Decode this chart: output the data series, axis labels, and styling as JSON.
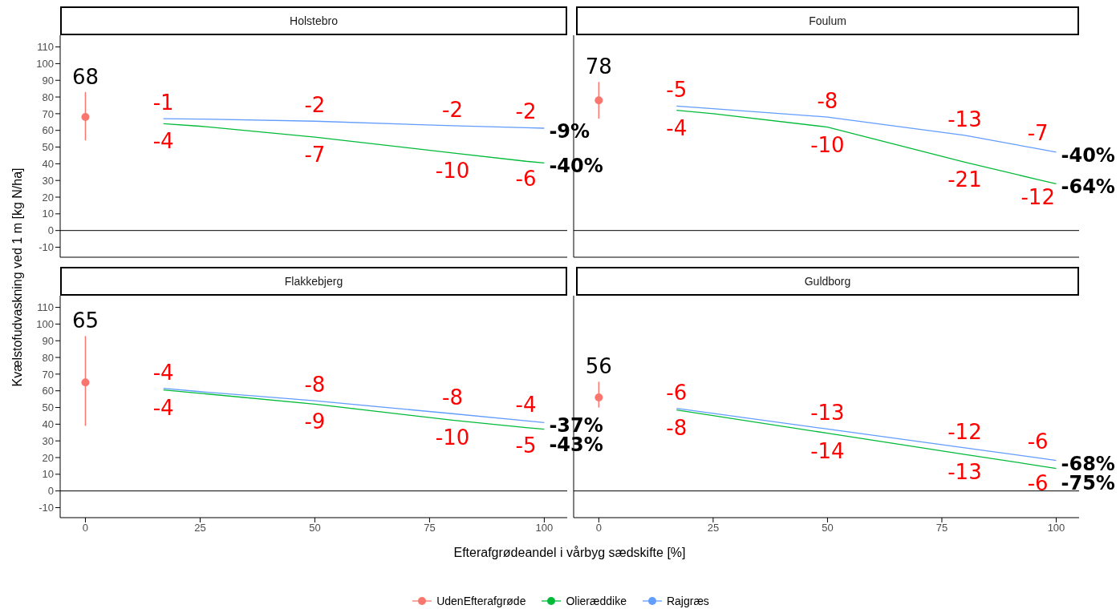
{
  "chart_data": [
    {
      "type": "line",
      "title": "Holstebro",
      "ylabel": "Kvælstofudvaskning ved 1 m [kg N/ha]",
      "xlim": [
        -5.5,
        105
      ],
      "xticks": [
        0,
        25,
        50,
        75,
        100
      ],
      "ylim": [
        -16,
        117
      ],
      "yticks": [
        -10,
        0,
        10,
        20,
        30,
        40,
        50,
        60,
        70,
        80,
        90,
        100,
        110
      ],
      "tick_labels": "y",
      "legend": "bottom",
      "ref_lines": [
        {
          "axis": "y",
          "value": 0,
          "color": "#000000"
        }
      ],
      "series": [
        {
          "name": "UdenEfterafgrøde",
          "type": "scatter",
          "marker": "circle",
          "color": "#f8766d",
          "x": [
            0
          ],
          "values": [
            68
          ],
          "errors": [
            [
              54,
              83
            ]
          ],
          "value_labels": [
            "68"
          ]
        },
        {
          "name": "Olieræddike",
          "color": "#00ba38",
          "x": [
            17,
            25,
            50,
            80,
            96,
            100
          ],
          "values": [
            64,
            62.5,
            56,
            46.5,
            41.5,
            40.5
          ]
        },
        {
          "name": "Rajgræs",
          "color": "#619cff",
          "x": [
            17,
            25,
            50,
            80,
            96,
            100
          ],
          "values": [
            67,
            66.8,
            65.5,
            62.8,
            61.6,
            61.3
          ]
        }
      ],
      "annotations": [
        {
          "text": "-1",
          "x": 17,
          "y": 67
        },
        {
          "text": "-4",
          "x": 17,
          "y": 64
        },
        {
          "text": "-2",
          "x": 50,
          "y": 65.5
        },
        {
          "text": "-7",
          "x": 50,
          "y": 56
        },
        {
          "text": "-2",
          "x": 80,
          "y": 62.8
        },
        {
          "text": "-10",
          "x": 80,
          "y": 46.5
        },
        {
          "text": "-2",
          "x": 96,
          "y": 61.6
        },
        {
          "text": "-6",
          "x": 96,
          "y": 41.5
        },
        {
          "text": "-9%",
          "x": 100,
          "y": 61.3
        },
        {
          "text": "-40%",
          "x": 100,
          "y": 40.5
        }
      ]
    },
    {
      "type": "line",
      "title": "Foulum",
      "xlim": [
        -5.5,
        105
      ],
      "xticks": [
        0,
        25,
        50,
        75,
        100
      ],
      "ylim": [
        -16,
        117
      ],
      "yticks": [
        -10,
        0,
        10,
        20,
        30,
        40,
        50,
        60,
        70,
        80,
        90,
        100,
        110
      ],
      "tick_labels": false,
      "ref_lines": [
        {
          "axis": "y",
          "value": 0,
          "color": "#000000"
        }
      ],
      "series": [
        {
          "type": "scatter",
          "marker": "circle",
          "color": "#f8766d",
          "x": [
            0
          ],
          "values": [
            78
          ],
          "errors": [
            [
              67,
              89
            ]
          ],
          "value_labels": [
            "78"
          ]
        },
        {
          "color": "#00ba38",
          "x": [
            17,
            25,
            50,
            80,
            96,
            100
          ],
          "values": [
            72,
            70,
            62,
            41,
            30.5,
            28
          ]
        },
        {
          "color": "#619cff",
          "x": [
            17,
            25,
            50,
            80,
            96,
            100
          ],
          "values": [
            74.6,
            73,
            68,
            57,
            49,
            47
          ]
        }
      ],
      "annotations": [
        {
          "text": "-5",
          "x": 17,
          "y": 74.6
        },
        {
          "text": "-4",
          "x": 17,
          "y": 72
        },
        {
          "text": "-8",
          "x": 50,
          "y": 68
        },
        {
          "text": "-10",
          "x": 50,
          "y": 62
        },
        {
          "text": "-13",
          "x": 80,
          "y": 57
        },
        {
          "text": "-21",
          "x": 80,
          "y": 41
        },
        {
          "text": "-7",
          "x": 96,
          "y": 49
        },
        {
          "text": "-12",
          "x": 96,
          "y": 30.5
        },
        {
          "text": "-40%",
          "x": 100,
          "y": 47
        },
        {
          "text": "-64%",
          "x": 100,
          "y": 28
        }
      ]
    },
    {
      "type": "line",
      "title": "Flakkebjerg",
      "xlabel": "Efterafgrødeandel i vårbyg sædskifte [%]",
      "xlim": [
        -5.5,
        105
      ],
      "xticks": [
        0,
        25,
        50,
        75,
        100
      ],
      "ylim": [
        -16,
        117
      ],
      "yticks": [
        -10,
        0,
        10,
        20,
        30,
        40,
        50,
        60,
        70,
        80,
        90,
        100,
        110
      ],
      "ref_lines": [
        {
          "axis": "y",
          "value": 0,
          "color": "#000000"
        }
      ],
      "series": [
        {
          "type": "scatter",
          "marker": "circle",
          "color": "#f8766d",
          "x": [
            0
          ],
          "values": [
            65
          ],
          "errors": [
            [
              39,
              92.8
            ]
          ],
          "value_labels": [
            "65"
          ]
        },
        {
          "color": "#00ba38",
          "x": [
            17,
            25,
            50,
            80,
            96,
            100
          ],
          "values": [
            60.5,
            58.5,
            52,
            42.4,
            38,
            37
          ]
        },
        {
          "color": "#619cff",
          "x": [
            17,
            25,
            50,
            80,
            96,
            100
          ],
          "values": [
            61.5,
            59.5,
            54,
            46.3,
            42,
            41
          ]
        }
      ],
      "annotations": [
        {
          "text": "-4",
          "x": 17,
          "y": 61.5
        },
        {
          "text": "-4",
          "x": 17,
          "y": 60.5
        },
        {
          "text": "-8",
          "x": 50,
          "y": 54
        },
        {
          "text": "-9",
          "x": 50,
          "y": 52
        },
        {
          "text": "-8",
          "x": 80,
          "y": 46.3
        },
        {
          "text": "-10",
          "x": 80,
          "y": 42.4
        },
        {
          "text": "-4",
          "x": 96,
          "y": 42
        },
        {
          "text": "-5",
          "x": 96,
          "y": 38
        },
        {
          "text": "-37%",
          "x": 100,
          "y": 41
        },
        {
          "text": "-43%",
          "x": 100,
          "y": 37
        }
      ]
    },
    {
      "type": "line",
      "title": "Guldborg",
      "xlim": [
        -5.5,
        105
      ],
      "xticks": [
        0,
        25,
        50,
        75,
        100
      ],
      "ylim": [
        -16,
        117
      ],
      "yticks": [
        -10,
        0,
        10,
        20,
        30,
        40,
        50,
        60,
        70,
        80,
        90,
        100,
        110
      ],
      "tick_labels": "x",
      "ref_lines": [
        {
          "axis": "y",
          "value": 0,
          "color": "#000000"
        }
      ],
      "series": [
        {
          "type": "scatter",
          "marker": "circle",
          "color": "#f8766d",
          "x": [
            0
          ],
          "values": [
            56
          ],
          "errors": [
            [
              50,
              65.4
            ]
          ],
          "value_labels": [
            "56"
          ]
        },
        {
          "color": "#00ba38",
          "x": [
            17,
            50,
            80,
            96,
            100
          ],
          "values": [
            48.5,
            34.6,
            21.9,
            15.2,
            13.5
          ]
        },
        {
          "color": "#619cff",
          "x": [
            17,
            50,
            80,
            96,
            100
          ],
          "values": [
            49.5,
            37.1,
            25.8,
            19.8,
            18.3
          ]
        }
      ],
      "annotations": [
        {
          "text": "-6",
          "x": 17,
          "y": 49.5
        },
        {
          "text": "-8",
          "x": 17,
          "y": 48.5
        },
        {
          "text": "-13",
          "x": 50,
          "y": 37.1
        },
        {
          "text": "-14",
          "x": 50,
          "y": 34.6
        },
        {
          "text": "-12",
          "x": 80,
          "y": 25.8
        },
        {
          "text": "-13",
          "x": 80,
          "y": 21.9
        },
        {
          "text": "-6",
          "x": 96,
          "y": 19.8
        },
        {
          "text": "-6",
          "x": 96,
          "y": 15.2
        },
        {
          "text": "-68%",
          "x": 100,
          "y": 18.3
        },
        {
          "text": "-75%",
          "x": 100,
          "y": 13.5
        }
      ]
    }
  ]
}
